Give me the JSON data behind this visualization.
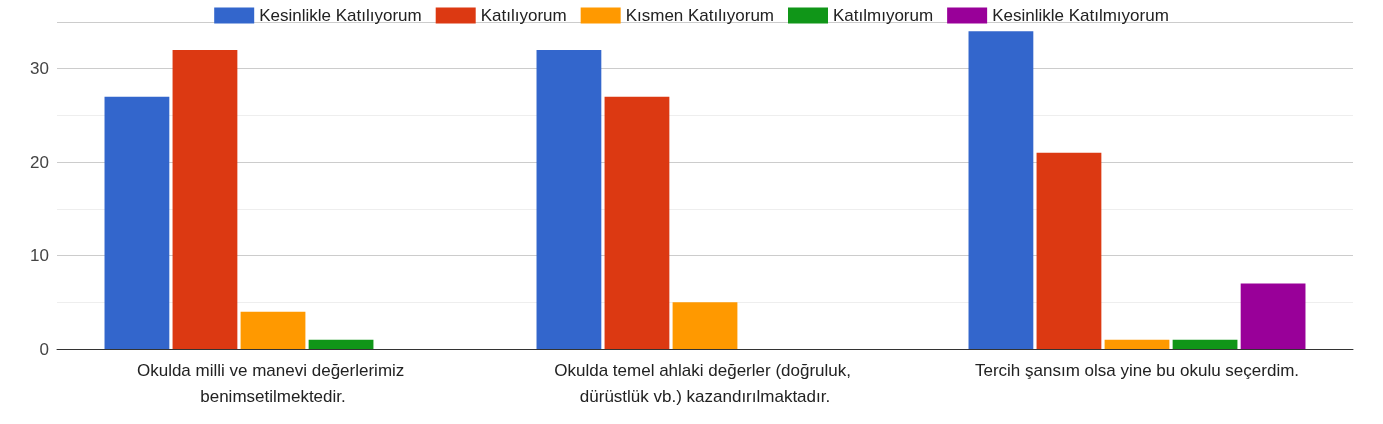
{
  "chart_data": {
    "type": "bar",
    "categories": [
      "Okulda milli ve manevi değerlerimiz benimsetilmektedir.",
      "Okulda temel ahlaki değerler (doğruluk, dürüstlük vb.) kazandırılmaktadır.",
      "Tercih şansım olsa yine bu okulu seçerdim."
    ],
    "series": [
      {
        "name": "Kesinlikle Katılıyorum",
        "color": "#3366cc",
        "values": [
          27,
          32,
          34
        ]
      },
      {
        "name": "Katılıyorum",
        "color": "#dc3912",
        "values": [
          32,
          27,
          21
        ]
      },
      {
        "name": "Kısmen Katılıyorum",
        "color": "#ff9900",
        "values": [
          4,
          5,
          1
        ]
      },
      {
        "name": "Katılmıyorum",
        "color": "#109618",
        "values": [
          1,
          0,
          1
        ]
      },
      {
        "name": "Kesinlikle Katılmıyorum",
        "color": "#990099",
        "values": [
          0,
          0,
          7
        ]
      }
    ],
    "ylim": [
      0,
      35
    ],
    "yticks": [
      0,
      10,
      20,
      30
    ],
    "grid": "y",
    "legend": "top"
  }
}
